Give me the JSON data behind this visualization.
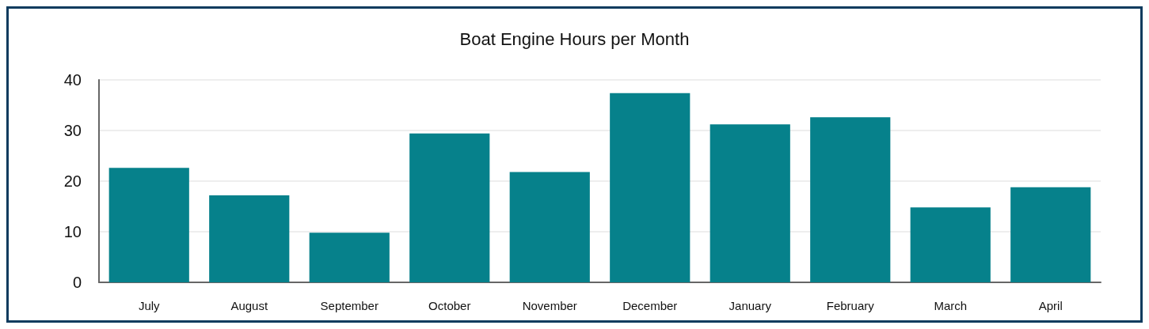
{
  "chart_data": {
    "type": "bar",
    "title": "Boat Engine Hours per Month",
    "categories": [
      "July",
      "August",
      "September",
      "October",
      "November",
      "December",
      "January",
      "February",
      "March",
      "April"
    ],
    "values": [
      22.6,
      17.2,
      9.8,
      29.4,
      21.8,
      37.4,
      31.2,
      32.6,
      14.8,
      18.8
    ],
    "color": "#06818b",
    "ylim": [
      0,
      40
    ],
    "yticks": [
      0,
      10,
      20,
      30,
      40
    ],
    "grid": "y"
  }
}
